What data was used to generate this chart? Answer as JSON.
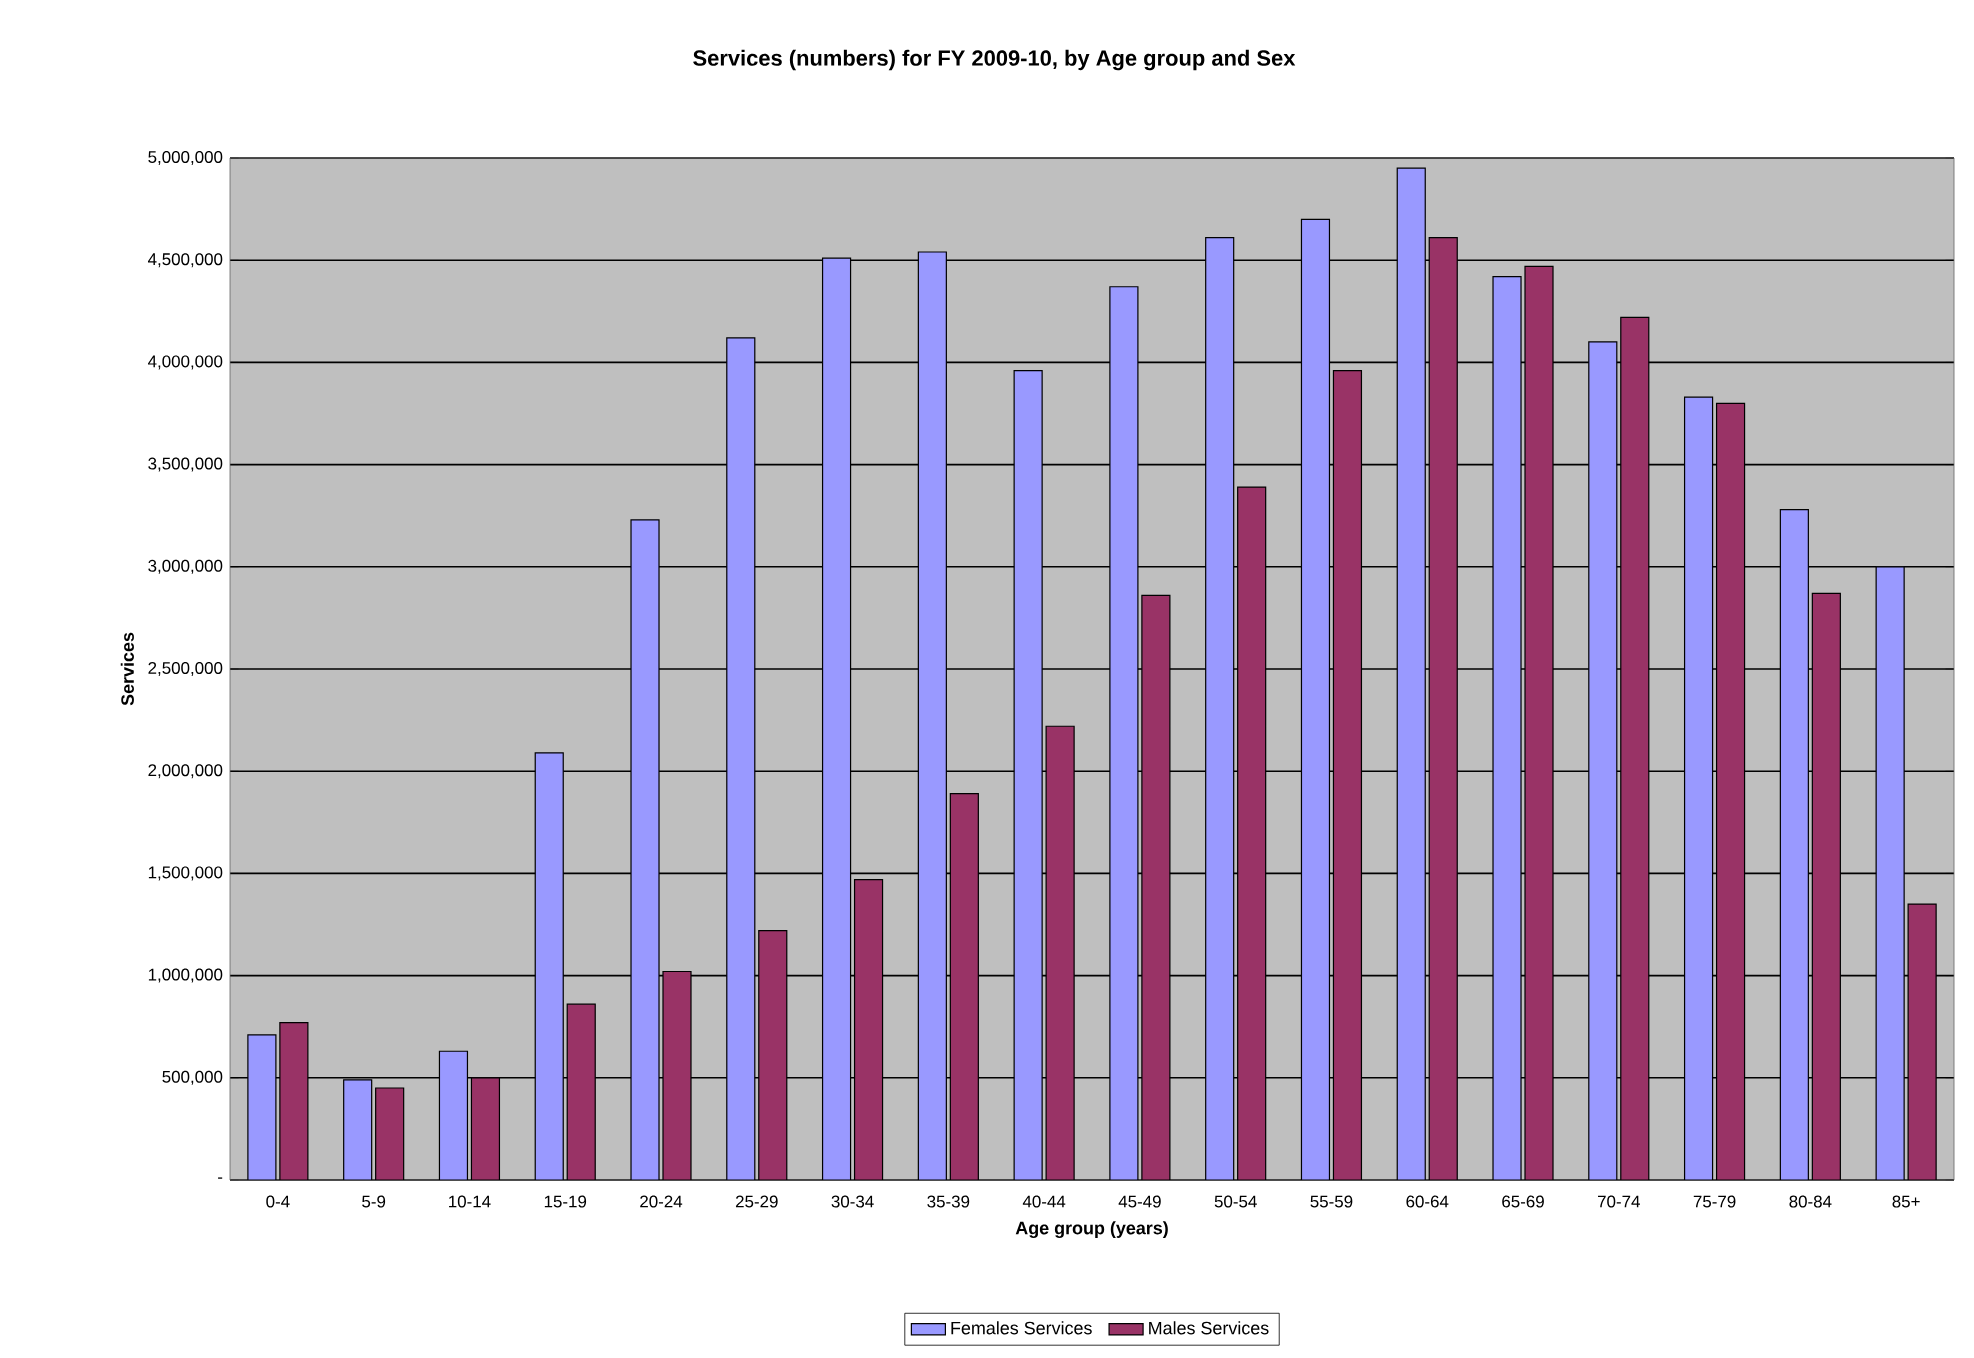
{
  "chart_data": {
    "type": "bar",
    "title": "Services (numbers) for FY 2009-10, by Age group and Sex",
    "xlabel": "Age group (years)",
    "ylabel": "Services",
    "categories": [
      "0-4",
      "5-9",
      "10-14",
      "15-19",
      "20-24",
      "25-29",
      "30-34",
      "35-39",
      "40-44",
      "45-49",
      "50-54",
      "55-59",
      "60-64",
      "65-69",
      "70-74",
      "75-79",
      "80-84",
      "85+"
    ],
    "series": [
      {
        "name": "Females Services",
        "color": "#9999ff",
        "values": [
          710000,
          490000,
          630000,
          2090000,
          3230000,
          4120000,
          4510000,
          4540000,
          3960000,
          4370000,
          4610000,
          4700000,
          4950000,
          4420000,
          4100000,
          3830000,
          3280000,
          3000000
        ]
      },
      {
        "name": "Males Services",
        "color": "#993366",
        "values": [
          770000,
          450000,
          500000,
          860000,
          1020000,
          1220000,
          1470000,
          1890000,
          2220000,
          2860000,
          3390000,
          3960000,
          4610000,
          4470000,
          4220000,
          3800000,
          2870000,
          1350000
        ]
      }
    ],
    "ylim": [
      0,
      5000000
    ],
    "yticks": [
      {
        "value": 0,
        "label": "-"
      },
      {
        "value": 500000,
        "label": "500,000"
      },
      {
        "value": 1000000,
        "label": "1,000,000"
      },
      {
        "value": 1500000,
        "label": "1,500,000"
      },
      {
        "value": 2000000,
        "label": "2,000,000"
      },
      {
        "value": 2500000,
        "label": "2,500,000"
      },
      {
        "value": 3000000,
        "label": "3,000,000"
      },
      {
        "value": 3500000,
        "label": "3,500,000"
      },
      {
        "value": 4000000,
        "label": "4,000,000"
      },
      {
        "value": 4500000,
        "label": "4,500,000"
      },
      {
        "value": 5000000,
        "label": "5,000,000"
      }
    ],
    "grid": "y",
    "legend": "bottom"
  }
}
